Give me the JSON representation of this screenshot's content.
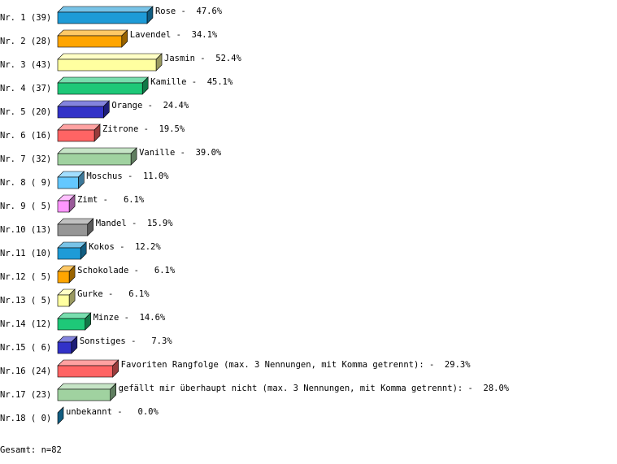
{
  "chart_data": {
    "type": "bar3d-horizontal",
    "categories": [
      "Nr. 1 (39)",
      "Nr. 2 (28)",
      "Nr. 3 (43)",
      "Nr. 4 (37)",
      "Nr. 5 (20)",
      "Nr. 6 (16)",
      "Nr. 7 (32)",
      "Nr. 8 ( 9)",
      "Nr. 9 ( 5)",
      "Nr.10 (13)",
      "Nr.11 (10)",
      "Nr.12 ( 5)",
      "Nr.13 ( 5)",
      "Nr.14 (12)",
      "Nr.15 ( 6)",
      "Nr.16 (24)",
      "Nr.17 (23)",
      "Nr.18 ( 0)"
    ],
    "values": [
      47.6,
      34.1,
      52.4,
      45.1,
      24.4,
      19.5,
      39.0,
      11.0,
      6.1,
      15.9,
      12.2,
      6.1,
      6.1,
      14.6,
      7.3,
      29.3,
      28.0,
      0.0
    ],
    "value_labels": [
      "Rose -  47.6%",
      "Lavendel -  34.1%",
      "Jasmin -  52.4%",
      "Kamille -  45.1%",
      "Orange -  24.4%",
      "Zitrone -  19.5%",
      "Vanille -  39.0%",
      "Moschus -  11.0%",
      "Zimt -   6.1%",
      "Mandel -  15.9%",
      "Kokos -  12.2%",
      "Schokolade -   6.1%",
      "Gurke -   6.1%",
      "Minze -  14.6%",
      "Sonstiges -   7.3%",
      "Favoriten Rangfolge (max. 3 Nennungen, mit Komma getrennt): -  29.3%",
      "gefällt mir überhaupt nicht (max. 3 Nennungen, mit Komma getrennt): -  28.0%",
      "unbekannt -   0.0%"
    ],
    "colors": [
      "#1e9bd7",
      "#ffa500",
      "#ffffa0",
      "#1ec878",
      "#3232c8",
      "#ff6464",
      "#a0d2a0",
      "#64c8ff",
      "#ff96ff",
      "#969696",
      "#1e9bd7",
      "#ffa500",
      "#ffffa0",
      "#1ec878",
      "#3232c8",
      "#ff6464",
      "#a0d2a0",
      "#1e9bd7"
    ],
    "footer": "Gesamt: n=82"
  }
}
